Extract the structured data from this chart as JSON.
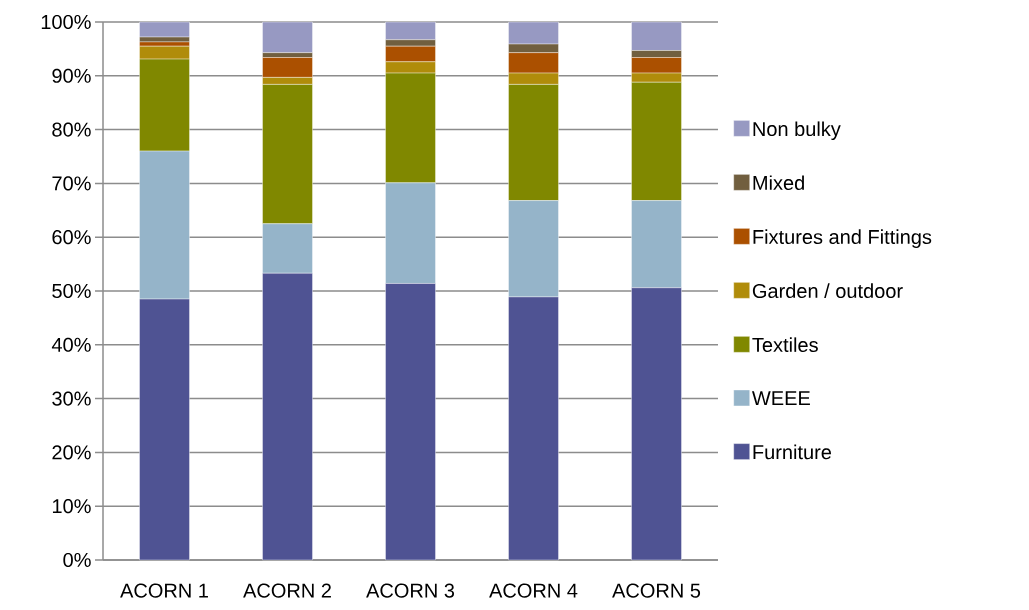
{
  "chart_data": {
    "type": "bar",
    "stacked": true,
    "categories": [
      "ACORN 1",
      "ACORN 2",
      "ACORN 3",
      "ACORN 4",
      "ACORN 5"
    ],
    "series": [
      {
        "name": "Furniture",
        "color": "#4f5393",
        "values": [
          48.5,
          53.3,
          51.4,
          48.9,
          50.6
        ]
      },
      {
        "name": "WEEE",
        "color": "#95b4c9",
        "values": [
          27.5,
          9.2,
          18.7,
          17.9,
          16.2
        ]
      },
      {
        "name": "Textiles",
        "color": "#808800",
        "values": [
          17.1,
          25.9,
          20.4,
          21.6,
          22.0
        ]
      },
      {
        "name": "Garden / outdoor",
        "color": "#b08c0a",
        "values": [
          2.4,
          1.3,
          2.1,
          2.1,
          1.7
        ]
      },
      {
        "name": "Fixtures and Fittings",
        "color": "#ab5000",
        "values": [
          0.8,
          3.7,
          2.9,
          3.8,
          2.9
        ]
      },
      {
        "name": "Mixed",
        "color": "#715f3f",
        "values": [
          0.9,
          0.9,
          1.2,
          1.6,
          1.3
        ]
      },
      {
        "name": "Non bulky",
        "color": "#9799c2",
        "values": [
          2.8,
          5.7,
          3.3,
          4.1,
          5.3
        ]
      }
    ],
    "ylim": [
      0,
      100
    ],
    "yticks": [
      {
        "value": 0,
        "label": "0%"
      },
      {
        "value": 10,
        "label": "10%"
      },
      {
        "value": 20,
        "label": "20%"
      },
      {
        "value": 30,
        "label": "30%"
      },
      {
        "value": 40,
        "label": "40%"
      },
      {
        "value": 50,
        "label": "50%"
      },
      {
        "value": 60,
        "label": "60%"
      },
      {
        "value": 70,
        "label": "70%"
      },
      {
        "value": 80,
        "label": "80%"
      },
      {
        "value": 90,
        "label": "90%"
      },
      {
        "value": 100,
        "label": "100%"
      }
    ],
    "grid": "y",
    "legend": "right"
  }
}
